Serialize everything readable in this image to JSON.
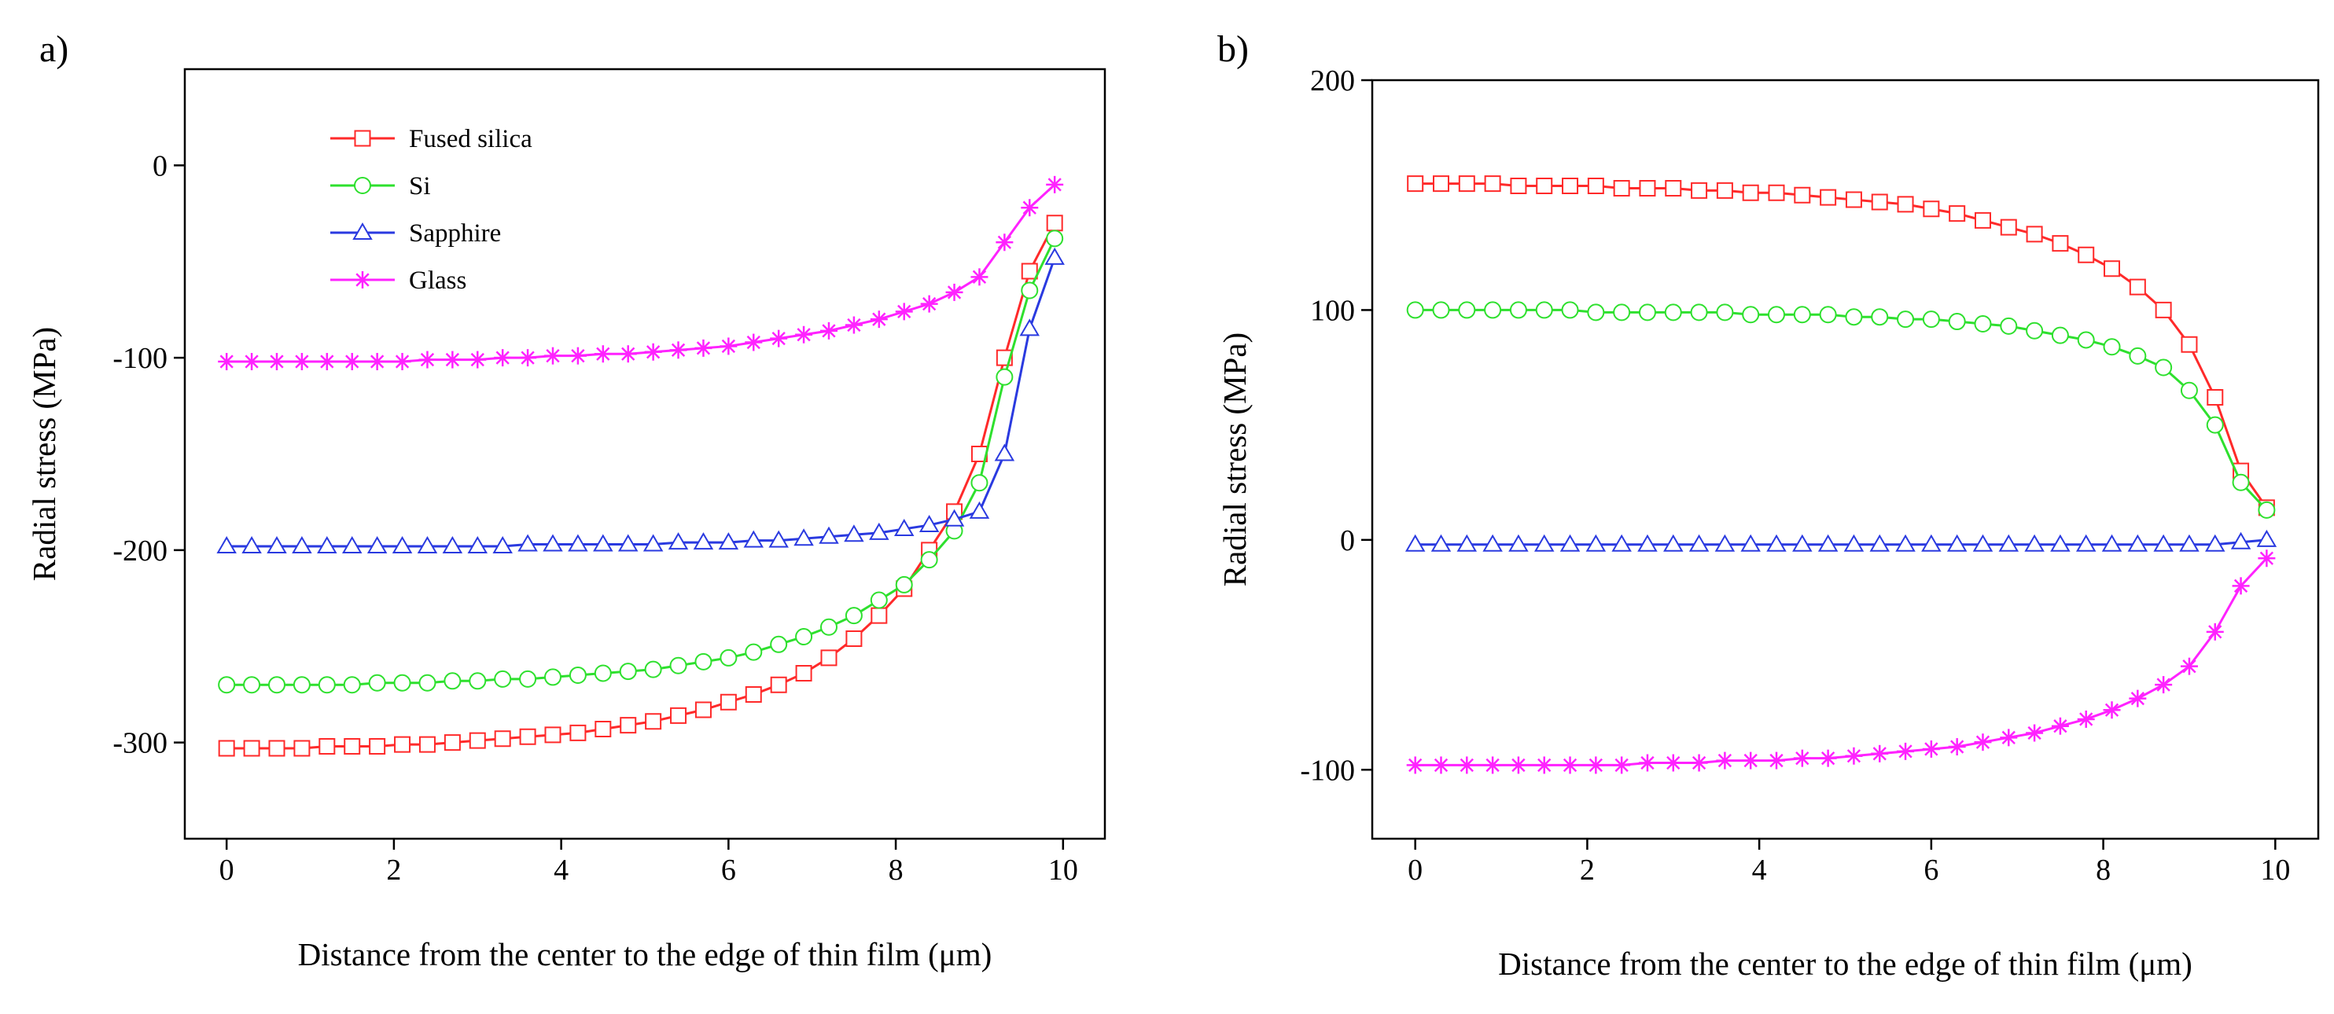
{
  "chart_data": [
    {
      "type": "line",
      "panel_label": "a)",
      "xlabel": "Distance from the center to the edge of thin film (μm)",
      "ylabel": "Radial stress (MPa)",
      "xlim": [
        -0.5,
        10.5
      ],
      "ylim": [
        -350,
        50
      ],
      "xticks": [
        0,
        2,
        4,
        6,
        8,
        10
      ],
      "yticks": [
        0,
        -100,
        -200,
        -300
      ],
      "legend_position": "top-left",
      "x": [
        0,
        0.3,
        0.6,
        0.9,
        1.2,
        1.5,
        1.8,
        2.1,
        2.4,
        2.7,
        3.0,
        3.3,
        3.6,
        3.9,
        4.2,
        4.5,
        4.8,
        5.1,
        5.4,
        5.7,
        6.0,
        6.3,
        6.6,
        6.9,
        7.2,
        7.5,
        7.8,
        8.1,
        8.4,
        8.7,
        9.0,
        9.3,
        9.6,
        9.9
      ],
      "series": [
        {
          "name": "Fused silica",
          "color": "#ff2a2a",
          "marker": "square",
          "values": [
            -303,
            -303,
            -303,
            -303,
            -302,
            -302,
            -302,
            -301,
            -301,
            -300,
            -299,
            -298,
            -297,
            -296,
            -295,
            -293,
            -291,
            -289,
            -286,
            -283,
            -279,
            -275,
            -270,
            -264,
            -256,
            -246,
            -234,
            -220,
            -200,
            -180,
            -150,
            -100,
            -55,
            -30
          ]
        },
        {
          "name": "Si",
          "color": "#2ee02e",
          "marker": "circle",
          "values": [
            -270,
            -270,
            -270,
            -270,
            -270,
            -270,
            -269,
            -269,
            -269,
            -268,
            -268,
            -267,
            -267,
            -266,
            -265,
            -264,
            -263,
            -262,
            -260,
            -258,
            -256,
            -253,
            -249,
            -245,
            -240,
            -234,
            -226,
            -218,
            -205,
            -190,
            -165,
            -110,
            -65,
            -38
          ]
        },
        {
          "name": "Sapphire",
          "color": "#2a3ae0",
          "marker": "triangle",
          "values": [
            -198,
            -198,
            -198,
            -198,
            -198,
            -198,
            -198,
            -198,
            -198,
            -198,
            -198,
            -198,
            -197,
            -197,
            -197,
            -197,
            -197,
            -197,
            -196,
            -196,
            -196,
            -195,
            -195,
            -194,
            -193,
            -192,
            -191,
            -189,
            -187,
            -184,
            -180,
            -150,
            -85,
            -48
          ]
        },
        {
          "name": "Glass",
          "color": "#ff22ff",
          "marker": "star",
          "values": [
            -102,
            -102,
            -102,
            -102,
            -102,
            -102,
            -102,
            -102,
            -101,
            -101,
            -101,
            -100,
            -100,
            -99,
            -99,
            -98,
            -98,
            -97,
            -96,
            -95,
            -94,
            -92,
            -90,
            -88,
            -86,
            -83,
            -80,
            -76,
            -72,
            -66,
            -58,
            -40,
            -22,
            -10
          ]
        }
      ]
    },
    {
      "type": "line",
      "panel_label": "b)",
      "xlabel": "Distance from the center to the edge of thin film (μm)",
      "ylabel": "Radial stress (MPa)",
      "xlim": [
        -0.5,
        10.5
      ],
      "ylim": [
        -130,
        200
      ],
      "xticks": [
        0,
        2,
        4,
        6,
        8,
        10
      ],
      "yticks": [
        200,
        100,
        0,
        -100
      ],
      "x": [
        0,
        0.3,
        0.6,
        0.9,
        1.2,
        1.5,
        1.8,
        2.1,
        2.4,
        2.7,
        3.0,
        3.3,
        3.6,
        3.9,
        4.2,
        4.5,
        4.8,
        5.1,
        5.4,
        5.7,
        6.0,
        6.3,
        6.6,
        6.9,
        7.2,
        7.5,
        7.8,
        8.1,
        8.4,
        8.7,
        9.0,
        9.3,
        9.6,
        9.9
      ],
      "series": [
        {
          "name": "Fused silica",
          "color": "#ff2a2a",
          "marker": "square",
          "values": [
            155,
            155,
            155,
            155,
            154,
            154,
            154,
            154,
            153,
            153,
            153,
            152,
            152,
            151,
            151,
            150,
            149,
            148,
            147,
            146,
            144,
            142,
            139,
            136,
            133,
            129,
            124,
            118,
            110,
            100,
            85,
            62,
            30,
            14
          ]
        },
        {
          "name": "Si",
          "color": "#2ee02e",
          "marker": "circle",
          "values": [
            100,
            100,
            100,
            100,
            100,
            100,
            100,
            99,
            99,
            99,
            99,
            99,
            99,
            98,
            98,
            98,
            98,
            97,
            97,
            96,
            96,
            95,
            94,
            93,
            91,
            89,
            87,
            84,
            80,
            75,
            65,
            50,
            25,
            13
          ]
        },
        {
          "name": "Sapphire",
          "color": "#2a3ae0",
          "marker": "triangle",
          "values": [
            -2,
            -2,
            -2,
            -2,
            -2,
            -2,
            -2,
            -2,
            -2,
            -2,
            -2,
            -2,
            -2,
            -2,
            -2,
            -2,
            -2,
            -2,
            -2,
            -2,
            -2,
            -2,
            -2,
            -2,
            -2,
            -2,
            -2,
            -2,
            -2,
            -2,
            -2,
            -2,
            -1,
            0
          ]
        },
        {
          "name": "Glass",
          "color": "#ff22ff",
          "marker": "star",
          "values": [
            -98,
            -98,
            -98,
            -98,
            -98,
            -98,
            -98,
            -98,
            -98,
            -97,
            -97,
            -97,
            -96,
            -96,
            -96,
            -95,
            -95,
            -94,
            -93,
            -92,
            -91,
            -90,
            -88,
            -86,
            -84,
            -81,
            -78,
            -74,
            -69,
            -63,
            -55,
            -40,
            -20,
            -8
          ]
        }
      ]
    }
  ]
}
